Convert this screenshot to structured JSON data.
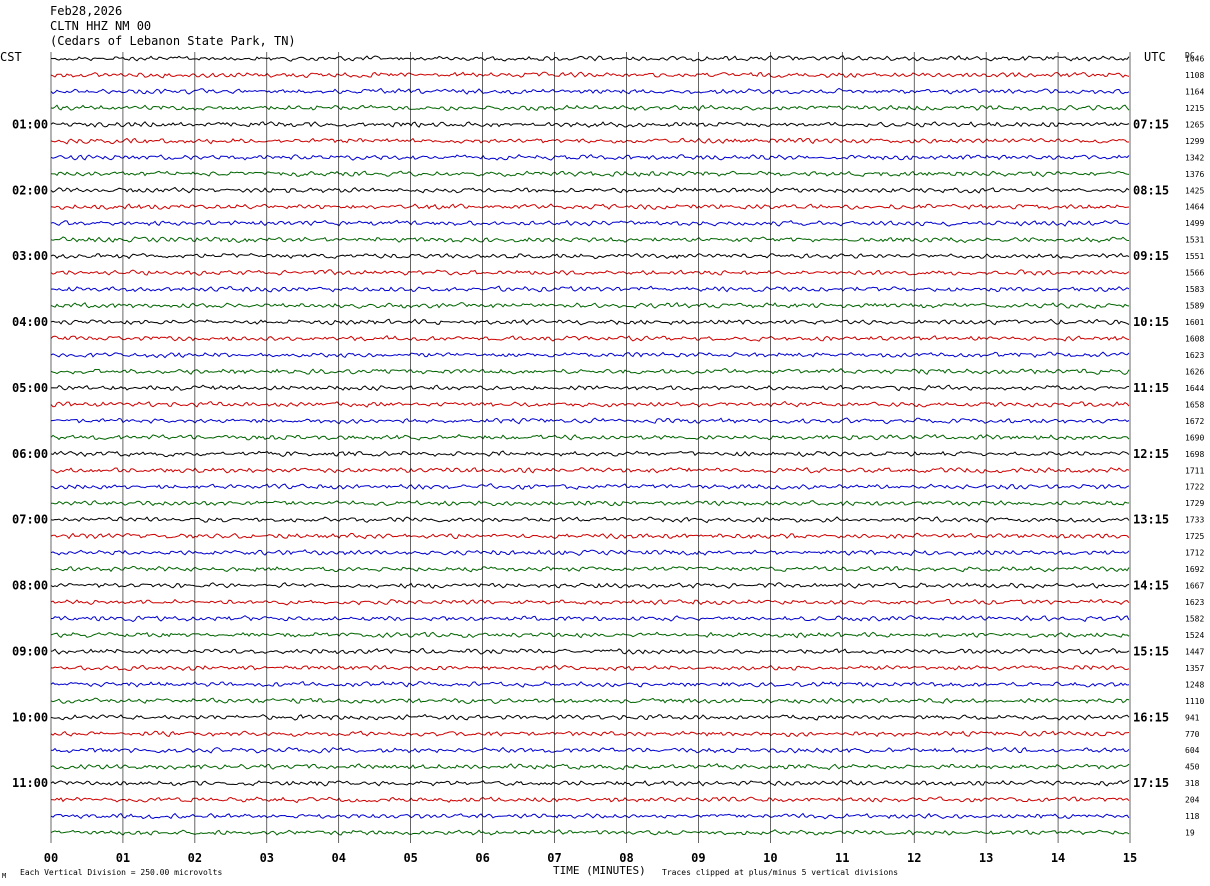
{
  "header": {
    "date": "Feb28,2026",
    "station": "CLTN HHZ NM 00",
    "location": "(Cedars of Lebanon State Park, TN)"
  },
  "left_timezone": "CST",
  "right_timezone": "UTC",
  "right_column_header": "DC",
  "footer": {
    "scale_note": "Each Vertical Division =  250.00 microvolts",
    "xlabel": "TIME (MINUTES)",
    "clip_note": "Traces clipped at plus/minus 5 vertical divisions",
    "corner_mark": "M"
  },
  "colors": {
    "trace_cycle": [
      "#000000",
      "#cc0000",
      "#0000cc",
      "#006400"
    ],
    "grid": "#000000"
  },
  "chart_data": {
    "type": "line",
    "title": "Feb28,2026",
    "xlabel": "TIME (MINUTES)",
    "ylabel": "",
    "xlim": [
      0,
      15
    ],
    "x_ticks": [
      "00",
      "01",
      "02",
      "03",
      "04",
      "05",
      "06",
      "07",
      "08",
      "09",
      "10",
      "11",
      "12",
      "13",
      "14",
      "15"
    ],
    "trace_interval_minutes": 15,
    "trace_count": 48,
    "left_hour_labels": [
      "01:00",
      "02:00",
      "03:00",
      "04:00",
      "05:00",
      "06:00",
      "07:00",
      "08:00",
      "09:00",
      "10:00",
      "11:00"
    ],
    "right_hour_labels": [
      "07:15",
      "08:15",
      "09:15",
      "10:15",
      "11:15",
      "12:15",
      "13:15",
      "14:15",
      "15:15",
      "16:15",
      "17:15"
    ],
    "dc_offsets": [
      "1046",
      "1108",
      "1164",
      "1215",
      "1265",
      "1299",
      "1342",
      "1376",
      "1425",
      "1464",
      "1499",
      "1531",
      "1551",
      "1566",
      "1583",
      "1589",
      "1601",
      "1608",
      "1623",
      "1626",
      "1644",
      "1658",
      "1672",
      "1690",
      "1698",
      "1711",
      "1722",
      "1729",
      "1733",
      "1725",
      "1712",
      "1692",
      "1667",
      "1623",
      "1582",
      "1524",
      "1447",
      "1357",
      "1248",
      "1110",
      "941",
      "770",
      "604",
      "450",
      "318",
      "204",
      "118",
      "19"
    ]
  }
}
